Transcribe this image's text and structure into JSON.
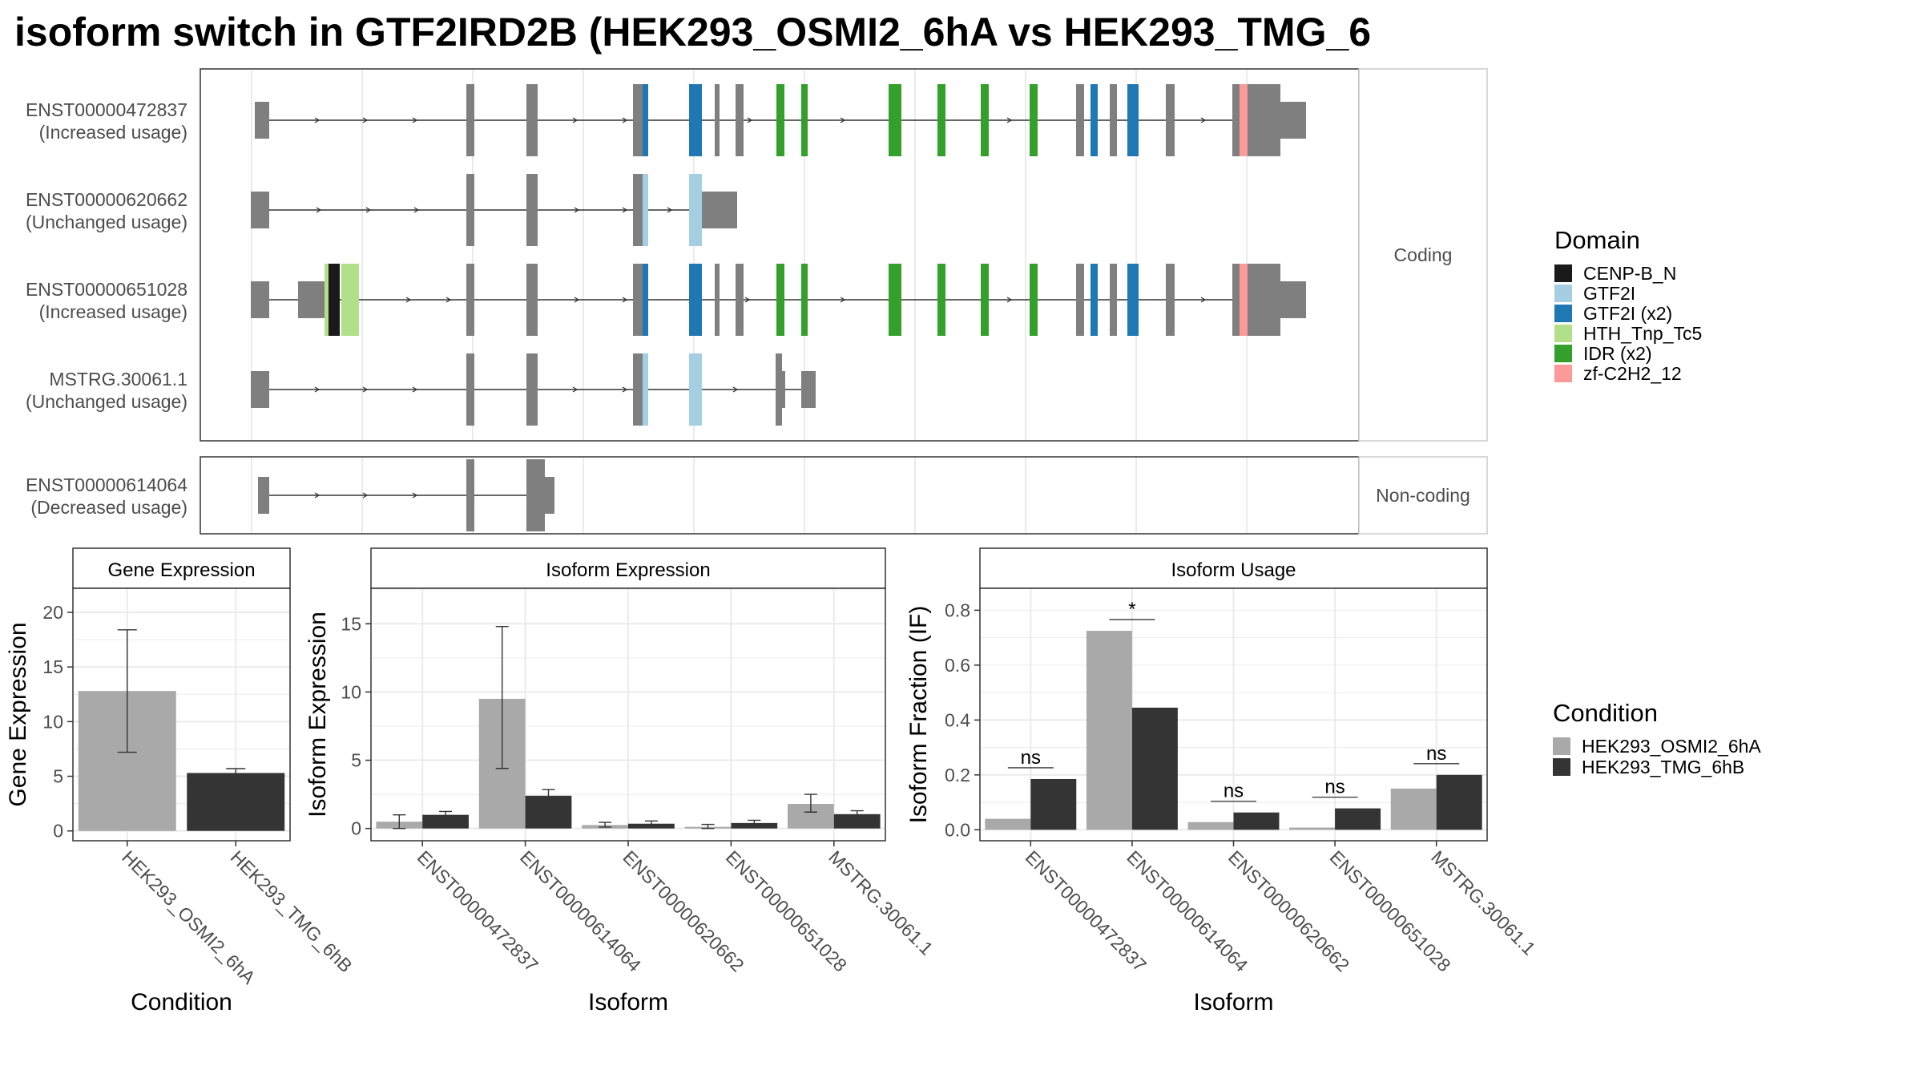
{
  "title": "isoform switch in GTF2IRD2B (HEK293_OSMI2_6hA vs HEK293_TMG_6",
  "colors": {
    "exon": "#7f7f7f",
    "cond1": "#a9a9a9",
    "cond2": "#343434",
    "grid": "#ebebeb",
    "domains": {
      "CENP-B_N": "#1a1a1a",
      "GTF2I": "#a6cee3",
      "GTF2I (x2)": "#1f78b4",
      "HTH_Tnp_Tc5": "#b2df8a",
      "IDR (x2)": "#33a02c",
      "zf-C2H2_12": "#fb9a99"
    }
  },
  "structure": {
    "facet_coding": "Coding",
    "facet_noncoding": "Non-coding",
    "isoforms": [
      {
        "id": "ENST00000472837",
        "usage": "(Increased usage)",
        "group": "coding"
      },
      {
        "id": "ENST00000620662",
        "usage": "(Unchanged usage)",
        "group": "coding"
      },
      {
        "id": "ENST00000651028",
        "usage": "(Increased usage)",
        "group": "coding"
      },
      {
        "id": "MSTRG.30061.1",
        "usage": "(Unchanged usage)",
        "group": "coding"
      },
      {
        "id": "ENST00000614064",
        "usage": "(Decreased usage)",
        "group": "noncoding"
      }
    ]
  },
  "legend_domain": {
    "title": "Domain",
    "items": [
      "CENP-B_N",
      "GTF2I",
      "GTF2I (x2)",
      "HTH_Tnp_Tc5",
      "IDR (x2)",
      "zf-C2H2_12"
    ]
  },
  "legend_condition": {
    "title": "Condition",
    "items": [
      "HEK293_OSMI2_6hA",
      "HEK293_TMG_6hB"
    ]
  },
  "chart_data": [
    {
      "type": "bar",
      "title": "Gene Expression",
      "xlabel": "Condition",
      "ylabel": "Gene Expression",
      "categories": [
        "HEK293_OSMI2_6hA",
        "HEK293_TMG_6hB"
      ],
      "values": [
        12.8,
        5.3
      ],
      "error_low": [
        7.2,
        4.9
      ],
      "error_high": [
        18.4,
        5.7
      ],
      "ylim": [
        -0.9,
        22.2
      ],
      "yticks": [
        0,
        5,
        10,
        15,
        20
      ]
    },
    {
      "type": "bar",
      "title": "Isoform Expression",
      "xlabel": "Isoform",
      "ylabel": "Isoform Expression",
      "categories": [
        "ENST00000472837",
        "ENST00000614064",
        "ENST00000620662",
        "ENST00000651028",
        "MSTRG.30061.1"
      ],
      "series": [
        {
          "name": "HEK293_OSMI2_6hA",
          "values": [
            0.5,
            9.5,
            0.25,
            0.12,
            1.8
          ],
          "error_low": [
            0.0,
            4.4,
            0.1,
            0.0,
            1.2
          ],
          "error_high": [
            1.0,
            14.8,
            0.45,
            0.3,
            2.5
          ]
        },
        {
          "name": "HEK293_TMG_6hB",
          "values": [
            1.0,
            2.4,
            0.35,
            0.4,
            1.05
          ],
          "error_low": [
            0.75,
            1.95,
            0.2,
            0.25,
            0.8
          ],
          "error_high": [
            1.25,
            2.85,
            0.55,
            0.6,
            1.3
          ]
        }
      ],
      "ylim": [
        -0.9,
        17.6
      ],
      "yticks": [
        0,
        5,
        10,
        15
      ]
    },
    {
      "type": "bar",
      "title": "Isoform Usage",
      "xlabel": "Isoform",
      "ylabel": "Isoform Fraction (IF)",
      "categories": [
        "ENST00000472837",
        "ENST00000614064",
        "ENST00000620662",
        "ENST00000651028",
        "MSTRG.30061.1"
      ],
      "series": [
        {
          "name": "HEK293_OSMI2_6hA",
          "values": [
            0.04,
            0.725,
            0.028,
            0.008,
            0.15
          ]
        },
        {
          "name": "HEK293_TMG_6hB",
          "values": [
            0.185,
            0.445,
            0.063,
            0.078,
            0.2
          ]
        }
      ],
      "significance": [
        "ns",
        "*",
        "ns",
        "ns",
        "ns"
      ],
      "ylim": [
        -0.04,
        0.88
      ],
      "yticks": [
        "0.0",
        "0.2",
        "0.4",
        "0.6",
        "0.8"
      ]
    }
  ]
}
